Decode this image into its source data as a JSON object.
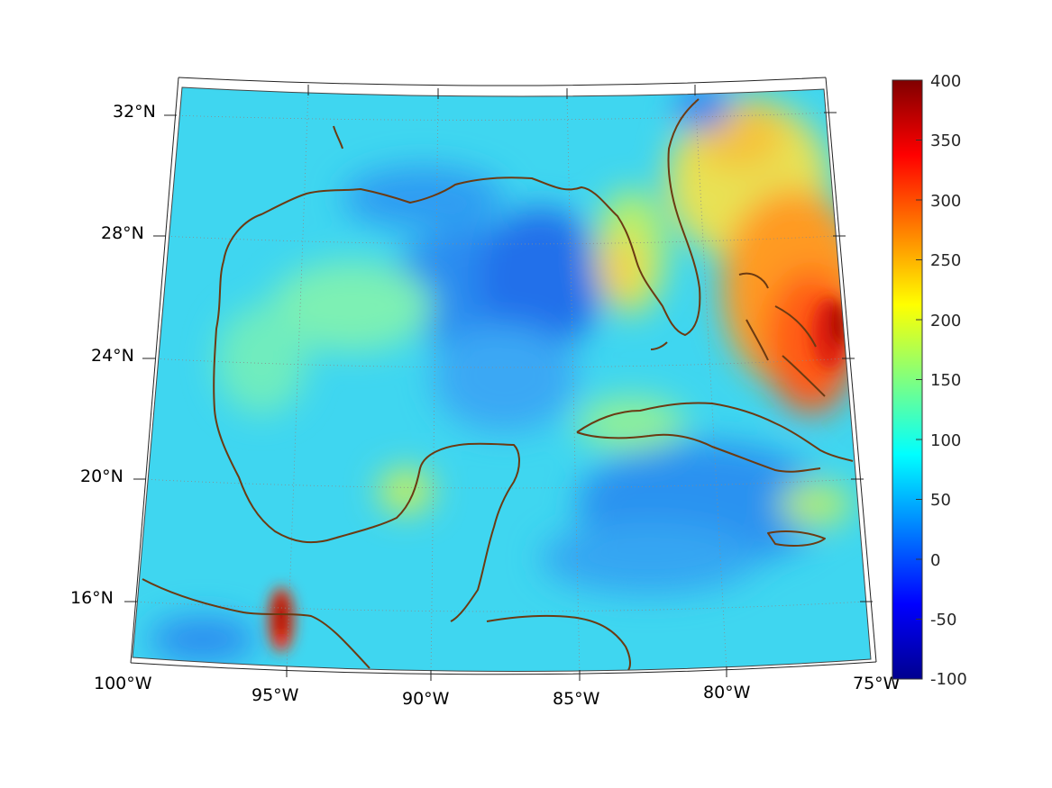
{
  "map": {
    "lat_labels": [
      "32°N",
      "28°N",
      "24°N",
      "20°N",
      "16°N"
    ],
    "lon_labels": [
      "100°W",
      "95°W",
      "90°W",
      "85°W",
      "80°W",
      "75°W"
    ],
    "land_outline_color": "#6b3a12"
  },
  "colorbar": {
    "tick_labels": [
      "400",
      "350",
      "300",
      "250",
      "200",
      "150",
      "100",
      "50",
      "0",
      "-50",
      "-100"
    ],
    "range": [
      -100,
      400
    ],
    "colormap": "jet"
  }
}
